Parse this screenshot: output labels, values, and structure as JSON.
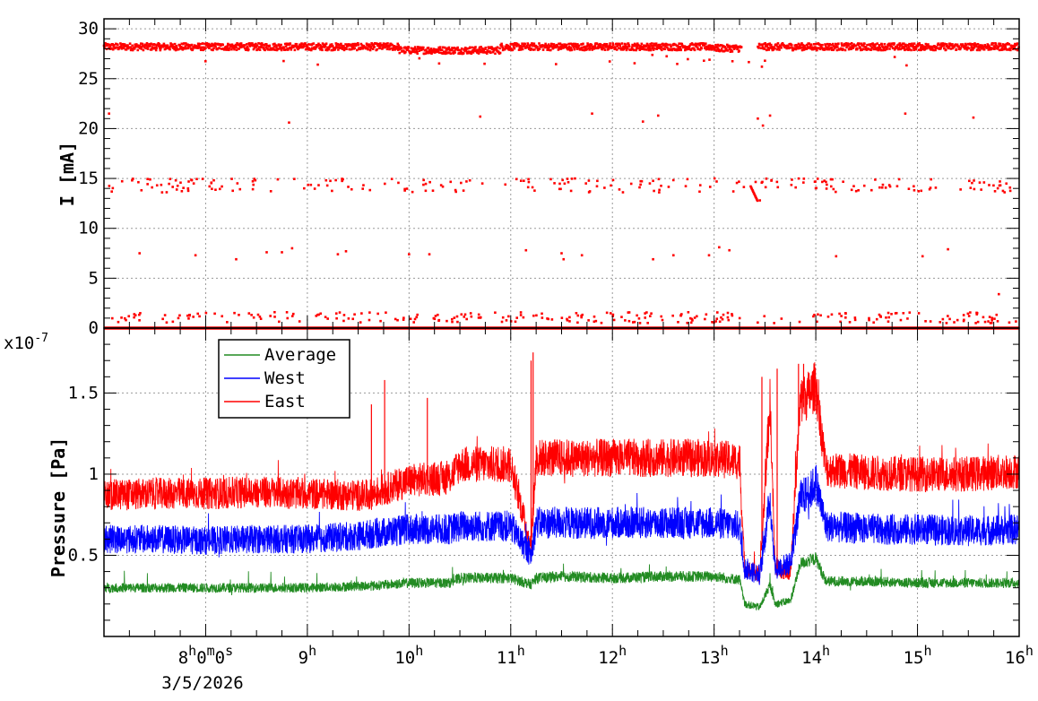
{
  "chart_data": [
    {
      "type": "scatter",
      "ylabel": "I [mA]",
      "xlim": [
        7.0,
        16.0
      ],
      "ylim": [
        0,
        31
      ],
      "yticks": [
        "0",
        "5",
        "10",
        "15",
        "20",
        "25",
        "30"
      ],
      "grid": true,
      "series": [
        {
          "color": "#ff0000",
          "baseline_level_mA": 28.2,
          "levels_mA": [
            0,
            0.9,
            7.4,
            14.4,
            21.1,
            28.2
          ],
          "gap_hours": [
            13.27,
            13.43
          ],
          "points": [
            [
              7.05,
              21.5
            ],
            [
              8.82,
              20.6
            ],
            [
              10.7,
              21.2
            ],
            [
              11.8,
              21.5
            ],
            [
              12.3,
              20.7
            ],
            [
              12.45,
              21.3
            ],
            [
              13.43,
              21.0
            ],
            [
              13.55,
              21.3
            ],
            [
              13.48,
              20.3
            ],
            [
              14.88,
              21.5
            ],
            [
              15.55,
              21.1
            ],
            [
              7.35,
              7.5
            ],
            [
              7.9,
              7.3
            ],
            [
              8.3,
              6.9
            ],
            [
              8.6,
              7.6
            ],
            [
              8.75,
              7.6
            ],
            [
              8.85,
              8.0
            ],
            [
              9.3,
              7.4
            ],
            [
              9.38,
              7.7
            ],
            [
              10.0,
              7.4
            ],
            [
              10.2,
              7.4
            ],
            [
              11.15,
              7.8
            ],
            [
              11.5,
              7.5
            ],
            [
              11.52,
              6.9
            ],
            [
              11.7,
              7.3
            ],
            [
              12.4,
              6.9
            ],
            [
              12.6,
              7.3
            ],
            [
              12.95,
              7.3
            ],
            [
              13.05,
              8.1
            ],
            [
              13.15,
              7.8
            ],
            [
              14.2,
              7.2
            ],
            [
              15.05,
              7.2
            ],
            [
              15.3,
              7.9
            ],
            [
              15.8,
              3.4
            ],
            [
              13.45,
              12.8
            ]
          ]
        }
      ]
    },
    {
      "type": "line",
      "ylabel": "Pressure [Pa]",
      "y_multiplier": "x10",
      "y_multiplier_exponent": "-7",
      "ylim": [
        0,
        1.9
      ],
      "yticks": [
        "0.5",
        "1",
        "1.5"
      ],
      "xlim": [
        7.0,
        16.0
      ],
      "xticks": [
        {
          "hour": 8,
          "text": "8",
          "sup": "h",
          "text2": "0",
          "sup2": "m",
          "text3": "0",
          "sup3": "s"
        },
        {
          "hour": 9,
          "text": "9",
          "sup": "h"
        },
        {
          "hour": 10,
          "text": "10",
          "sup": "h"
        },
        {
          "hour": 11,
          "text": "11",
          "sup": "h"
        },
        {
          "hour": 12,
          "text": "12",
          "sup": "h"
        },
        {
          "hour": 13,
          "text": "13",
          "sup": "h"
        },
        {
          "hour": 14,
          "text": "14",
          "sup": "h"
        },
        {
          "hour": 15,
          "text": "15",
          "sup": "h"
        },
        {
          "hour": 16,
          "text": "16",
          "sup": "h"
        }
      ],
      "date_label": "3/5/2026",
      "legend_position": "top-left",
      "grid": true,
      "series": [
        {
          "name": "Average",
          "color": "#228b22",
          "x": [
            7.0,
            7.5,
            8.0,
            8.5,
            9.0,
            9.5,
            9.6,
            10.0,
            10.4,
            10.5,
            11.0,
            11.2,
            11.25,
            11.5,
            12.0,
            12.5,
            13.0,
            13.25,
            13.3,
            13.45,
            13.55,
            13.6,
            13.75,
            13.85,
            13.95,
            14.0,
            14.1,
            14.5,
            15.0,
            15.5,
            16.0
          ],
          "values": [
            0.3,
            0.3,
            0.3,
            0.3,
            0.3,
            0.31,
            0.31,
            0.33,
            0.33,
            0.36,
            0.36,
            0.32,
            0.36,
            0.37,
            0.36,
            0.37,
            0.37,
            0.35,
            0.2,
            0.18,
            0.32,
            0.2,
            0.22,
            0.45,
            0.47,
            0.48,
            0.34,
            0.34,
            0.33,
            0.33,
            0.33
          ]
        },
        {
          "name": "West",
          "color": "#0000ff",
          "x": [
            7.0,
            7.5,
            8.0,
            8.5,
            9.0,
            9.5,
            9.6,
            10.0,
            10.4,
            10.5,
            11.0,
            11.2,
            11.25,
            11.5,
            12.0,
            12.5,
            13.0,
            13.25,
            13.3,
            13.45,
            13.55,
            13.6,
            13.75,
            13.85,
            13.95,
            14.0,
            14.1,
            14.5,
            15.0,
            15.5,
            16.0
          ],
          "values": [
            0.6,
            0.6,
            0.59,
            0.6,
            0.6,
            0.62,
            0.63,
            0.66,
            0.66,
            0.68,
            0.68,
            0.5,
            0.7,
            0.7,
            0.7,
            0.7,
            0.7,
            0.68,
            0.42,
            0.38,
            0.85,
            0.42,
            0.45,
            0.85,
            0.9,
            0.95,
            0.68,
            0.66,
            0.66,
            0.65,
            0.66
          ]
        },
        {
          "name": "East",
          "color": "#ff0000",
          "x": [
            7.0,
            7.5,
            8.0,
            8.5,
            9.0,
            9.5,
            9.6,
            10.0,
            10.4,
            10.5,
            11.0,
            11.2,
            11.25,
            11.5,
            12.0,
            12.5,
            13.0,
            13.25,
            13.3,
            13.45,
            13.55,
            13.6,
            13.75,
            13.85,
            13.95,
            14.0,
            14.1,
            14.5,
            15.0,
            15.5,
            16.0
          ],
          "values": [
            0.87,
            0.88,
            0.88,
            0.89,
            0.88,
            0.87,
            0.87,
            0.96,
            0.98,
            1.06,
            1.06,
            0.55,
            1.1,
            1.1,
            1.1,
            1.1,
            1.1,
            1.08,
            0.42,
            0.38,
            1.45,
            0.42,
            0.4,
            1.45,
            1.5,
            1.55,
            1.03,
            1.01,
            1.0,
            1.0,
            1.02
          ]
        }
      ],
      "spikes": [
        [
          9.63,
          1.43
        ],
        [
          9.76,
          1.58
        ],
        [
          10.18,
          1.47
        ],
        [
          11.22,
          1.75
        ],
        [
          11.2,
          1.7
        ],
        [
          13.47,
          1.6
        ],
        [
          13.62,
          1.65
        ],
        [
          13.83,
          1.68
        ],
        [
          13.88,
          1.68
        ]
      ]
    }
  ]
}
